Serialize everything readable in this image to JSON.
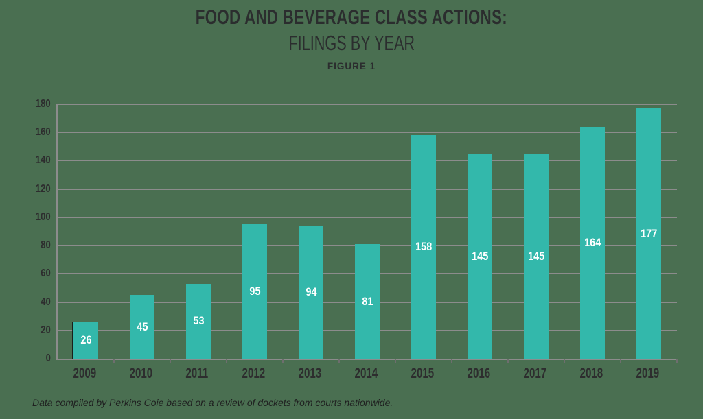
{
  "header": {
    "title_line1": "FOOD AND BEVERAGE CLASS ACTIONS:",
    "title_line2": "FILINGS BY YEAR",
    "figure_label": "FIGURE 1"
  },
  "footer": {
    "note": "Data compiled by Perkins Coie based on a review of dockets from courts nationwide."
  },
  "chart_data": {
    "type": "bar",
    "title": "FOOD AND BEVERAGE CLASS ACTIONS: FILINGS BY YEAR",
    "subtitle": "FIGURE 1",
    "categories": [
      "2009",
      "2010",
      "2011",
      "2012",
      "2013",
      "2014",
      "2015",
      "2016",
      "2017",
      "2018",
      "2019"
    ],
    "values": [
      26,
      45,
      53,
      95,
      94,
      81,
      158,
      145,
      145,
      164,
      177
    ],
    "xlabel": "",
    "ylabel": "",
    "ylim": [
      0,
      180
    ],
    "ytick_step": 20,
    "grid": true,
    "legend": "none",
    "bar_value_labels": "inside-center"
  },
  "colors": {
    "background": "#4a6f51",
    "bar": "#33b8ab",
    "gridline": "#8c8c8c",
    "axis_line": "#8c8c8c",
    "tick": "#6e6e6e",
    "axis_text": "#2d2d2e",
    "title_text": "#2b2d2e",
    "bar_label_text": "#ffffff",
    "footer_text": "#1f2020"
  }
}
